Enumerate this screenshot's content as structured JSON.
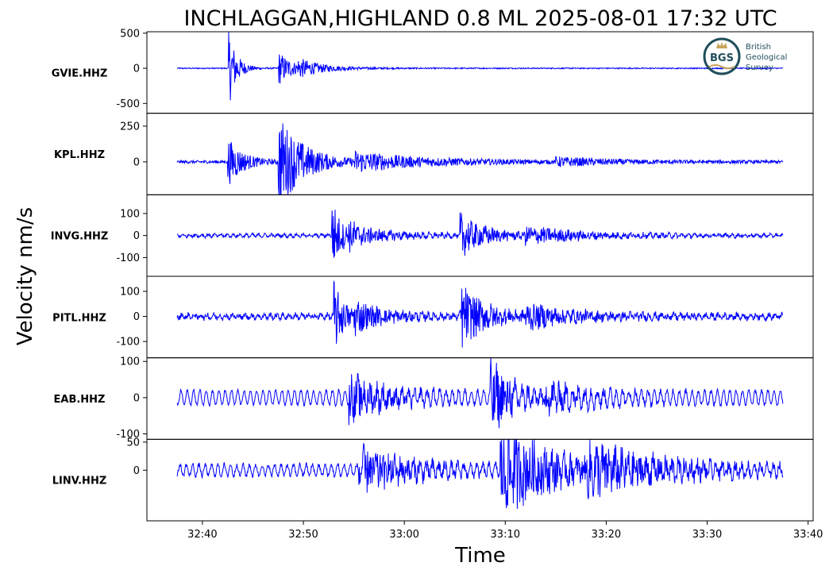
{
  "chart_data": {
    "type": "line",
    "title": "INCHLAGGAN,HIGHLAND 0.8 ML   2025-08-01 17:32 UTC",
    "ylabel": "Velocity nm/s",
    "xlabel": "Time",
    "x_ticks": [
      "32:40",
      "32:50",
      "33:00",
      "33:10",
      "33:20",
      "33:30",
      "33:40"
    ],
    "x_tick_seconds": [
      40,
      50,
      60,
      70,
      80,
      90,
      100
    ],
    "x_range_seconds": [
      34.5,
      100.5
    ],
    "trace_range_seconds": [
      37.5,
      97.5
    ],
    "line_color": "#0000ff",
    "grid": false,
    "logo": {
      "mark": "BGS",
      "lines": [
        "British",
        "Geological",
        "Survey"
      ]
    },
    "series": [
      {
        "name": "GVIE.HHZ",
        "ylim": [
          -640,
          520
        ],
        "ticks": [
          500,
          0,
          -500
        ],
        "tick_labels": [
          "500",
          "0",
          "-500"
        ],
        "noise": 8,
        "bg_amp": 0,
        "bursts": [
          {
            "t": 42.6,
            "amp": 560,
            "decay": 0.8
          },
          {
            "t": 47.5,
            "amp": 250,
            "decay": 1.5
          },
          {
            "t": 49.5,
            "amp": 90,
            "decay": 3.0
          }
        ]
      },
      {
        "name": "KPL.HHZ",
        "ylim": [
          -230,
          340
        ],
        "ticks": [
          250,
          0
        ],
        "tick_labels": [
          "250",
          "0"
        ],
        "noise": 10,
        "bg_amp": 0,
        "bursts": [
          {
            "t": 42.5,
            "amp": 170,
            "decay": 1.5
          },
          {
            "t": 47.5,
            "amp": 330,
            "decay": 2.5
          },
          {
            "t": 55.0,
            "amp": 60,
            "decay": 8.0
          },
          {
            "t": 75.0,
            "amp": 25,
            "decay": 6.0
          }
        ]
      },
      {
        "name": "INVG.HHZ",
        "ylim": [
          -185,
          185
        ],
        "ticks": [
          100,
          0,
          -100
        ],
        "tick_labels": [
          "100",
          "0",
          "-100"
        ],
        "noise": 6,
        "bg_amp": 6,
        "bursts": [
          {
            "t": 52.8,
            "amp": 170,
            "decay": 1.0
          },
          {
            "t": 54.5,
            "amp": 45,
            "decay": 4.0
          },
          {
            "t": 65.5,
            "amp": 100,
            "decay": 2.5
          },
          {
            "t": 72.0,
            "amp": 35,
            "decay": 6.0
          }
        ]
      },
      {
        "name": "PITL.HHZ",
        "ylim": [
          -165,
          160
        ],
        "ticks": [
          100,
          0,
          -100
        ],
        "tick_labels": [
          "100",
          "0",
          "-100"
        ],
        "noise": 10,
        "bg_amp": 8,
        "bursts": [
          {
            "t": 53.0,
            "amp": 140,
            "decay": 1.0
          },
          {
            "t": 55.0,
            "amp": 55,
            "decay": 3.0
          },
          {
            "t": 65.5,
            "amp": 130,
            "decay": 2.5
          },
          {
            "t": 72.0,
            "amp": 40,
            "decay": 5.0
          }
        ]
      },
      {
        "name": "EAB.HHZ",
        "ylim": [
          -115,
          110
        ],
        "ticks": [
          100,
          0,
          -100
        ],
        "tick_labels": [
          "100",
          "0",
          "-100"
        ],
        "noise": 4,
        "bg_amp": 20,
        "bursts": [
          {
            "t": 54.5,
            "amp": 60,
            "decay": 4.0
          },
          {
            "t": 68.5,
            "amp": 95,
            "decay": 2.5
          },
          {
            "t": 74.0,
            "amp": 30,
            "decay": 6.0
          }
        ]
      },
      {
        "name": "LINV.HHZ",
        "ylim": [
          -90,
          55
        ],
        "ticks": [
          50,
          0
        ],
        "tick_labels": [
          "50",
          "0"
        ],
        "noise": 4,
        "bg_amp": 10,
        "bursts": [
          {
            "t": 55.5,
            "amp": 40,
            "decay": 5.0
          },
          {
            "t": 69.5,
            "amp": 85,
            "decay": 5.0
          },
          {
            "t": 78.0,
            "amp": 35,
            "decay": 8.0
          }
        ]
      }
    ]
  }
}
